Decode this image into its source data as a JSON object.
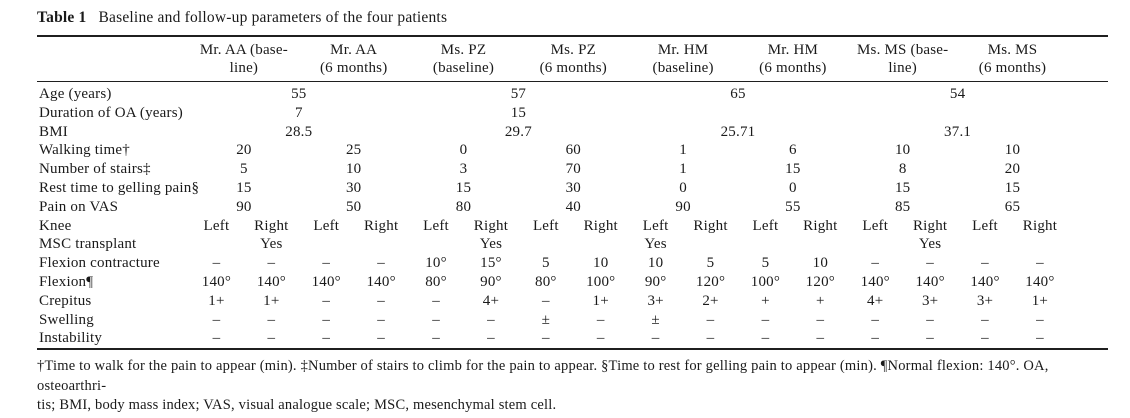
{
  "table": {
    "title_label": "Table 1",
    "title_text": "Baseline and follow-up parameters of the four patients",
    "columns": [
      {
        "line1": "Mr. AA (base-",
        "line2": "line)"
      },
      {
        "line1": "Mr. AA",
        "line2": "(6 months)"
      },
      {
        "line1": "Ms. PZ",
        "line2": "(baseline)"
      },
      {
        "line1": "Ms. PZ",
        "line2": "(6 months)"
      },
      {
        "line1": "Mr. HM",
        "line2": "(baseline)"
      },
      {
        "line1": "Mr. HM",
        "line2": "(6 months)"
      },
      {
        "line1": "Ms. MS (base-",
        "line2": "line)"
      },
      {
        "line1": "Ms. MS",
        "line2": "(6 months)"
      }
    ],
    "body_rows": [
      {
        "span": 4,
        "label": "Age (years)",
        "values": [
          "55",
          "57",
          "65",
          "54"
        ]
      },
      {
        "span": 4,
        "label": "Duration of OA (years)",
        "values": [
          "7",
          "15",
          "",
          ""
        ]
      },
      {
        "span": 4,
        "label": "BMI",
        "values": [
          "28.5",
          "29.7",
          "25.71",
          "37.1"
        ]
      },
      {
        "span": 2,
        "label": "Walking time†",
        "values": [
          "20",
          "25",
          "0",
          "60",
          "1",
          "6",
          "10",
          "10"
        ]
      },
      {
        "span": 2,
        "label": "Number of stairs‡",
        "values": [
          "5",
          "10",
          "3",
          "70",
          "1",
          "15",
          "8",
          "20"
        ]
      },
      {
        "span": 2,
        "label": "Rest time to gelling pain§",
        "values": [
          "15",
          "30",
          "15",
          "30",
          "0",
          "0",
          "15",
          "15"
        ]
      },
      {
        "span": 2,
        "label": "Pain on VAS",
        "values": [
          "90",
          "50",
          "80",
          "40",
          "90",
          "55",
          "85",
          "65"
        ]
      },
      {
        "span": 1,
        "label": "Knee",
        "values": [
          "Left",
          "Right",
          "Left",
          "Right",
          "Left",
          "Right",
          "Left",
          "Right",
          "Left",
          "Right",
          "Left",
          "Right",
          "Left",
          "Right",
          "Left",
          "Right"
        ]
      },
      {
        "span": 1,
        "label": "MSC transplant",
        "values": [
          "",
          "Yes",
          "",
          "",
          "",
          "Yes",
          "",
          "",
          "Yes",
          "",
          "",
          "",
          "",
          "Yes",
          "",
          ""
        ]
      },
      {
        "span": 1,
        "label": "Flexion contracture",
        "values": [
          "–",
          "–",
          "–",
          "–",
          "10°",
          "15°",
          "5",
          "10",
          "10",
          "5",
          "5",
          "10",
          "–",
          "–",
          "–",
          "–"
        ]
      },
      {
        "span": 1,
        "label": "Flexion¶",
        "values": [
          "140°",
          "140°",
          "140°",
          "140°",
          "80°",
          "90°",
          "80°",
          "100°",
          "90°",
          "120°",
          "100°",
          "120°",
          "140°",
          "140°",
          "140°",
          "140°"
        ]
      },
      {
        "span": 1,
        "label": "Crepitus",
        "values": [
          "1+",
          "1+",
          "–",
          "–",
          "–",
          "4+",
          "–",
          "1+",
          "3+",
          "2+",
          "+",
          "+",
          "4+",
          "3+",
          "3+",
          "1+"
        ]
      },
      {
        "span": 1,
        "label": "Swelling",
        "values": [
          "–",
          "–",
          "–",
          "–",
          "–",
          "–",
          "±",
          "–",
          "±",
          "–",
          "–",
          "–",
          "–",
          "–",
          "–",
          "–"
        ]
      },
      {
        "span": 1,
        "label": "Instability",
        "values": [
          "–",
          "–",
          "–",
          "–",
          "–",
          "–",
          "–",
          "–",
          "–",
          "–",
          "–",
          "–",
          "–",
          "–",
          "–",
          "–"
        ]
      }
    ],
    "footnote_line1": "†Time to walk for the pain to appear (min). ‡Number of stairs to climb for the pain to appear. §Time to rest for gelling pain to appear (min). ¶Normal flexion: 140°. OA, osteoarthri-",
    "footnote_line2": "tis; BMI, body mass index; VAS, visual analogue scale; MSC, mesenchymal stem cell."
  }
}
